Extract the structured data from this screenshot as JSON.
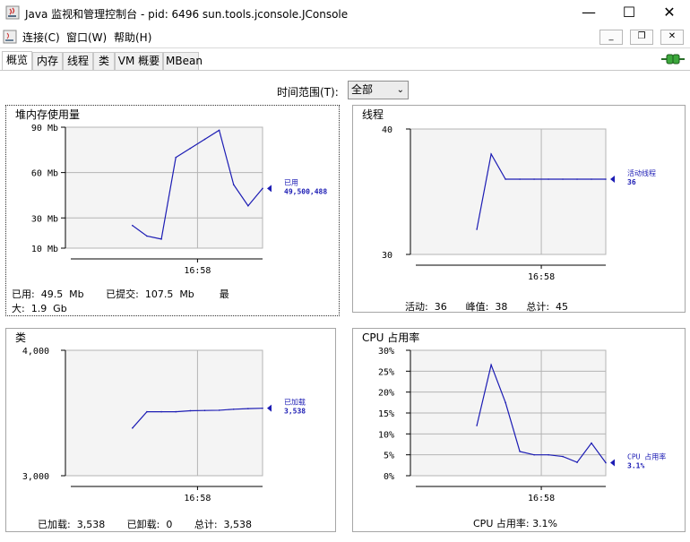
{
  "window": {
    "title": "Java 监视和管理控制台 - pid: 6496 sun.tools.jconsole.JConsole",
    "minimize": "—",
    "maximize": "☐",
    "close": "✕"
  },
  "menu": {
    "items": [
      "连接(C)",
      "窗口(W)",
      "帮助(H)"
    ],
    "mdi_minimize": "_",
    "mdi_restore": "❐",
    "mdi_close": "✕"
  },
  "tabs": [
    "概览",
    "内存",
    "线程",
    "类",
    "VM 概要",
    "MBean"
  ],
  "active_tab": 0,
  "time_range": {
    "label": "时间范围(T):",
    "value": "全部"
  },
  "colors": {
    "line": "#1c1cb4",
    "grid": "#b4b4b4",
    "plot_bg": "#f4f4f4"
  },
  "panels": {
    "heap": {
      "title": "堆内存使用量",
      "summary_line1": "已用:  49.5  Mb       已提交:  107.5  Mb        最",
      "summary_line2": "大:  1.9  Gb"
    },
    "threads": {
      "title": "线程",
      "summary": "活动:  36      峰值:  38      总计:  45"
    },
    "classes": {
      "title": "类",
      "summary": "已加载:  3,538       已卸载:  0       总计:  3,538"
    },
    "cpu": {
      "title": "CPU 占用率",
      "summary": "CPU 占用率: 3.1%"
    }
  },
  "chart_data": [
    {
      "type": "line",
      "title": "堆内存使用量",
      "ytick_labels": [
        "90 Mb",
        "60 Mb",
        "30 Mb",
        "10 Mb"
      ],
      "ytick_values": [
        90,
        60,
        30,
        10
      ],
      "ylim": [
        10,
        90
      ],
      "xtick_label": "16:58",
      "series": [
        {
          "name": "已用",
          "current_label": "49,500,488",
          "values": [
            25,
            18,
            16,
            70,
            76,
            82,
            88,
            52,
            38,
            49.5
          ]
        }
      ]
    },
    {
      "type": "line",
      "title": "线程",
      "ytick_labels": [
        "40",
        "30"
      ],
      "ytick_values": [
        40,
        30
      ],
      "ylim": [
        30,
        40
      ],
      "xtick_label": "16:58",
      "series": [
        {
          "name": "活动线程",
          "current_label": "36",
          "values": [
            32,
            38,
            36,
            36,
            36,
            36,
            36,
            36,
            36,
            36
          ]
        }
      ]
    },
    {
      "type": "line",
      "title": "类",
      "ytick_labels": [
        "4,000",
        "3,000"
      ],
      "ytick_values": [
        4000,
        3000
      ],
      "ylim": [
        3000,
        4000
      ],
      "xtick_label": "16:58",
      "series": [
        {
          "name": "已加载",
          "current_label": "3,538",
          "values": [
            3380,
            3510,
            3510,
            3510,
            3518,
            3520,
            3522,
            3530,
            3535,
            3538
          ]
        }
      ]
    },
    {
      "type": "line",
      "title": "CPU 占用率",
      "ytick_labels": [
        "30%",
        "25%",
        "20%",
        "15%",
        "10%",
        "5%",
        "0%"
      ],
      "ytick_values": [
        30,
        25,
        20,
        15,
        10,
        5,
        0
      ],
      "ylim": [
        0,
        30
      ],
      "xtick_label": "16:58",
      "series": [
        {
          "name": "CPU 占用率",
          "current_label": "3.1%",
          "values": [
            12,
            26.5,
            17.5,
            5.8,
            5,
            5,
            4.6,
            3.2,
            7.8,
            3.1
          ]
        }
      ]
    }
  ]
}
